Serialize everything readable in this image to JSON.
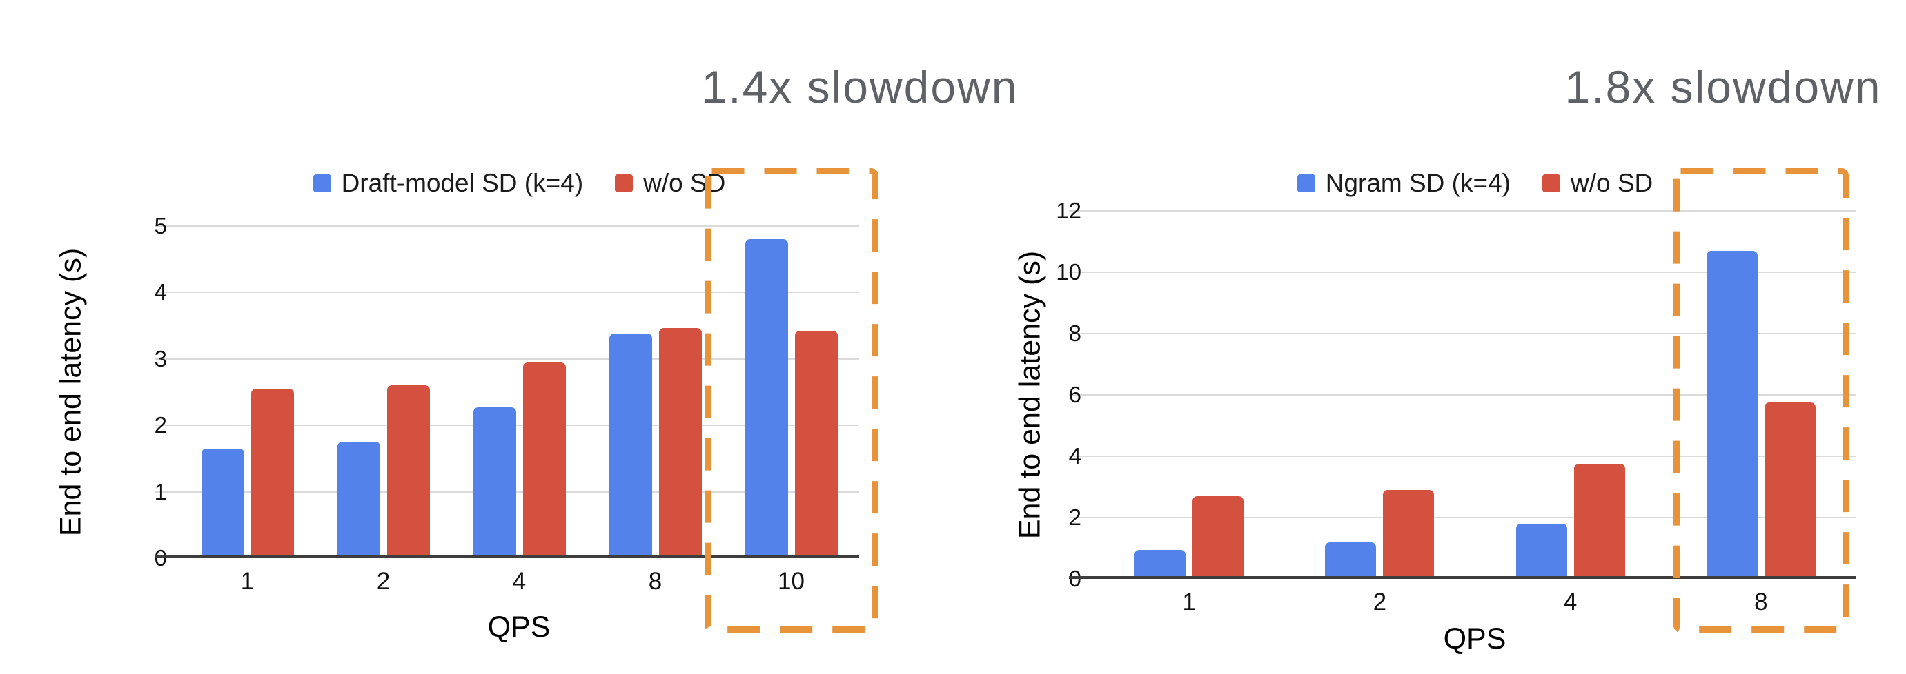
{
  "page": {
    "background": "#FFFFFF"
  },
  "colors": {
    "series_blue": "#5282EA",
    "series_red": "#D5513F",
    "highlight_orange": "#E6933B",
    "annotation_gray": "#5E6165",
    "gridline": "#DADADA",
    "axis_line": "#3D3D3D",
    "tick_text": "#111111",
    "legend_text": "#1B1B1B"
  },
  "chart_data": [
    {
      "type": "bar",
      "annotation": "1.4x slowdown",
      "xlabel": "QPS",
      "ylabel": "End to end latency (s)",
      "categories": [
        "1",
        "2",
        "4",
        "8",
        "10"
      ],
      "series": [
        {
          "name": "Draft-model SD (k=4)",
          "color": "#5282EA",
          "values": [
            1.65,
            1.75,
            2.27,
            3.38,
            4.8
          ]
        },
        {
          "name": "w/o SD",
          "color": "#D5513F",
          "values": [
            2.55,
            2.6,
            2.95,
            3.47,
            3.42
          ]
        }
      ],
      "ylim": [
        0,
        5
      ],
      "yticks": [
        0,
        1,
        2,
        3,
        4,
        5
      ],
      "grid": true,
      "legend_position": "top",
      "highlight": {
        "category_index": 4,
        "color": "#E6933B",
        "style": "dashed-box"
      }
    },
    {
      "type": "bar",
      "annotation": "1.8x slowdown",
      "xlabel": "QPS",
      "ylabel": "End to end latency (s)",
      "categories": [
        "1",
        "2",
        "4",
        "8"
      ],
      "series": [
        {
          "name": "Ngram SD (k=4)",
          "color": "#5282EA",
          "values": [
            0.95,
            1.2,
            1.8,
            10.7
          ]
        },
        {
          "name": "w/o SD",
          "color": "#D5513F",
          "values": [
            2.7,
            2.9,
            3.75,
            5.75
          ]
        }
      ],
      "ylim": [
        0,
        12
      ],
      "yticks": [
        0,
        2,
        4,
        6,
        8,
        10,
        12
      ],
      "grid": true,
      "legend_position": "top",
      "highlight": {
        "category_index": 3,
        "color": "#E6933B",
        "style": "dashed-box"
      }
    }
  ]
}
